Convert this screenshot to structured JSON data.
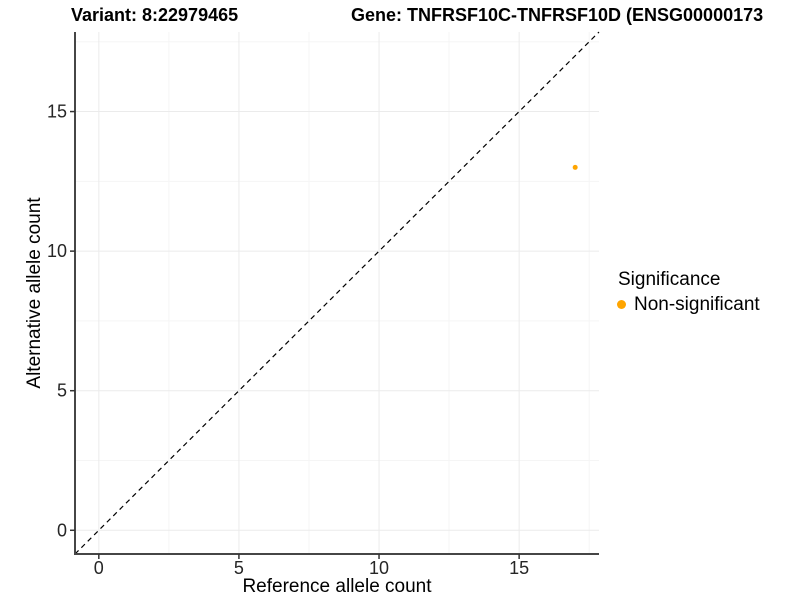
{
  "header": {
    "variant_label": "Variant: 8:22979465",
    "gene_label": "Gene: TNFRSF10C-TNFRSF10D (ENSG00000173"
  },
  "chart_data": {
    "type": "scatter",
    "title_left": "Variant: 8:22979465",
    "title_right": "Gene: TNFRSF10C-TNFRSF10D (ENSG00000173",
    "xlabel": "Reference allele count",
    "ylabel": "Alternative allele count",
    "xlim": [
      -0.85,
      17.85
    ],
    "ylim": [
      -0.85,
      17.85
    ],
    "x_major_ticks": [
      0,
      5,
      10,
      15
    ],
    "y_major_ticks": [
      0,
      5,
      10,
      15
    ],
    "x_minor_ticks": [
      2.5,
      7.5,
      12.5,
      17.5
    ],
    "y_minor_ticks": [
      2.5,
      7.5,
      12.5,
      17.5
    ],
    "grid": "major+minor",
    "identity_line": {
      "style": "dashed",
      "slope": 1,
      "intercept": 0,
      "color": "#000000"
    },
    "series": [
      {
        "name": "Non-significant",
        "color": "#FFA500",
        "points": [
          {
            "x": 17,
            "y": 13
          }
        ]
      }
    ],
    "legend": {
      "title": "Significance",
      "position": "right",
      "items": [
        {
          "label": "Non-significant",
          "color": "#FFA500"
        }
      ]
    }
  },
  "colors": {
    "axis_line": "#464646",
    "tick_mark": "#333333",
    "tick_label": "#262626",
    "grid_major": "#ebebeb",
    "grid_minor": "#f5f5f5",
    "background": "#ffffff"
  }
}
